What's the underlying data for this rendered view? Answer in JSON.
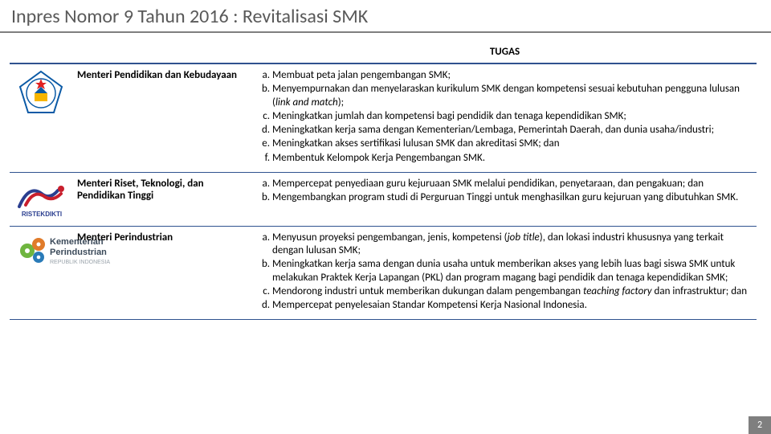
{
  "title": "Inpres Nomor 9 Tahun 2016 : Revitalisasi SMK",
  "tugas_header": "TUGAS",
  "page_number": "2",
  "colors": {
    "title_text": "#595959",
    "title_underline": "#7f7f7f",
    "table_border": "#2f528f",
    "page_num_bg": "#7f7f7f",
    "page_num_text": "#ffffff"
  },
  "rows": [
    {
      "icon": "kemdikbud",
      "name": "Menteri Pendidikan dan Kebudayaan",
      "tasks": [
        "Membuat peta jalan pengembangan SMK;",
        "Menyempurnakan dan menyelaraskan kurikulum SMK dengan kompetensi sesuai kebutuhan pengguna lulusan (<em>link and match</em>);",
        "Meningkatkan jumlah dan kompetensi bagi pendidik dan tenaga kependidikan SMK;",
        "Meningkatkan kerja sama dengan Kementerian/Lembaga, Pemerintah Daerah, dan dunia usaha/industri;",
        "Meningkatkan akses sertifikasi lulusan SMK dan akreditasi SMK; dan",
        "Membentuk Kelompok Kerja Pengembangan SMK."
      ]
    },
    {
      "icon": "ristekdikti",
      "name": "Menteri Riset, Teknologi, dan Pendidikan Tinggi",
      "tasks": [
        "Mempercepat penyediaan guru kejuruaan SMK melalui pendidikan, penyetaraan, dan pengakuan; dan",
        "Mengembangkan program studi di Perguruan Tinggi untuk menghasilkan guru kejuruan yang dibutuhkan SMK."
      ]
    },
    {
      "icon": "kemenperin",
      "name": "Menteri Perindustrian",
      "tasks": [
        "Menyusun proyeksi pengembangan, jenis, kompetensi (<em>job title</em>), dan lokasi industri khususnya yang terkait dengan lulusan SMK;",
        "Meningkatkan kerja sama dengan dunia usaha untuk memberikan akses yang lebih luas bagi siswa SMK untuk melakukan Praktek Kerja Lapangan (PKL) dan program magang bagi pendidik dan tenaga kependidikan SMK;",
        "Mendorong industri untuk memberikan dukungan dalam pengembangan <em>teaching factory</em> dan infrastruktur; dan",
        "Mempercepat penyelesaian Standar Kompetensi Kerja Nasional Indonesia."
      ]
    }
  ],
  "icon_styles": {
    "kemdikbud": {
      "primary": "#0b5aa6",
      "accent": "#f7b500",
      "star": "#e02020"
    },
    "ristekdikti": {
      "blue": "#2a3e8f",
      "red": "#c81f2d",
      "text": "#2a3e8f"
    },
    "kemenperin": {
      "gear_green": "#6fb53f",
      "gear_orange": "#e07b2a",
      "gear_blue": "#2a7bb8",
      "text": "#3b4a5a",
      "subtext": "#9aa3ab"
    }
  }
}
